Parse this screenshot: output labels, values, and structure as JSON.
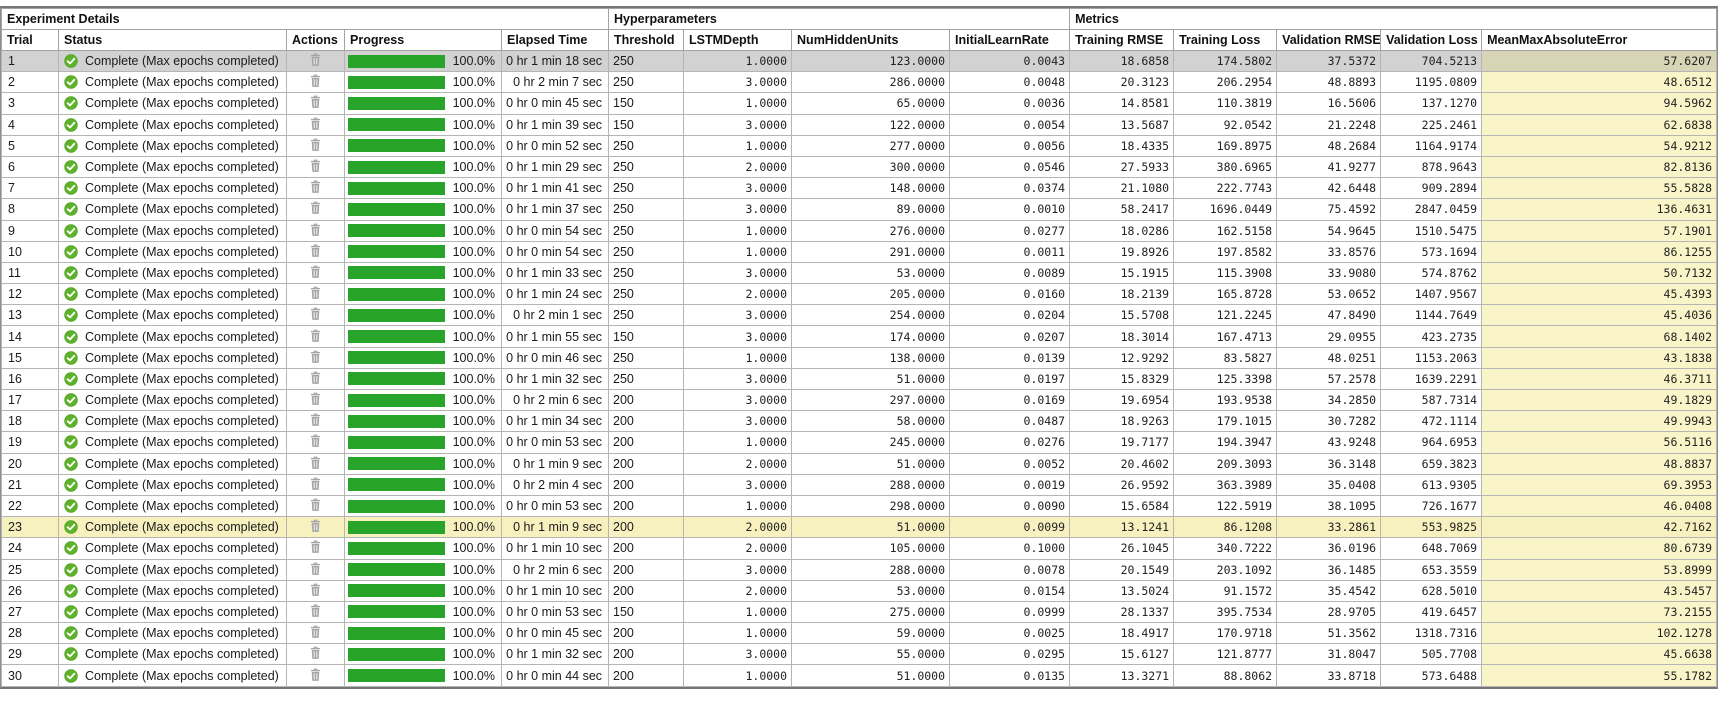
{
  "groups": [
    {
      "label": "Experiment Details"
    },
    {
      "label": "Hyperparameters"
    },
    {
      "label": "Metrics"
    }
  ],
  "columns": [
    "Trial",
    "Status",
    "Actions",
    "Progress",
    "Elapsed Time",
    "Threshold",
    "LSTMDepth",
    "NumHiddenUnits",
    "InitialLearnRate",
    "Training RMSE",
    "Training Loss",
    "Validation RMSE",
    "Validation Loss",
    "MeanMaxAbsoluteError"
  ],
  "status_label": "Complete (Max epochs completed)",
  "status_icon": "check-circle-icon",
  "action_icon": "trash-icon",
  "progress_label": "100.0%",
  "selected_trial": 1,
  "highlighted_trial": 23,
  "colors": {
    "progress_green": "#28a42b",
    "status_check_green": "#5cb229",
    "metric_column_yellow": "#faf5c8",
    "highlight_row_yellow": "#f7f1c0",
    "selected_row_gray": "#d2d2d2",
    "selected_metric_olive": "#d8d4b6"
  },
  "rows": [
    {
      "trial": "1",
      "elapsed": "0 hr 1 min 18 sec",
      "threshold": "250",
      "lstm_depth": "1.0000",
      "num_hidden_units": "123.0000",
      "initial_learn_rate": "0.0043",
      "training_rmse": "18.6858",
      "training_loss": "174.5802",
      "validation_rmse": "37.5372",
      "validation_loss": "704.5213",
      "mean_max_abs_error": "57.6207"
    },
    {
      "trial": "2",
      "elapsed": "0 hr 2 min 7 sec",
      "threshold": "250",
      "lstm_depth": "3.0000",
      "num_hidden_units": "286.0000",
      "initial_learn_rate": "0.0048",
      "training_rmse": "20.3123",
      "training_loss": "206.2954",
      "validation_rmse": "48.8893",
      "validation_loss": "1195.0809",
      "mean_max_abs_error": "48.6512"
    },
    {
      "trial": "3",
      "elapsed": "0 hr 0 min 45 sec",
      "threshold": "150",
      "lstm_depth": "1.0000",
      "num_hidden_units": "65.0000",
      "initial_learn_rate": "0.0036",
      "training_rmse": "14.8581",
      "training_loss": "110.3819",
      "validation_rmse": "16.5606",
      "validation_loss": "137.1270",
      "mean_max_abs_error": "94.5962"
    },
    {
      "trial": "4",
      "elapsed": "0 hr 1 min 39 sec",
      "threshold": "150",
      "lstm_depth": "3.0000",
      "num_hidden_units": "122.0000",
      "initial_learn_rate": "0.0054",
      "training_rmse": "13.5687",
      "training_loss": "92.0542",
      "validation_rmse": "21.2248",
      "validation_loss": "225.2461",
      "mean_max_abs_error": "62.6838"
    },
    {
      "trial": "5",
      "elapsed": "0 hr 0 min 52 sec",
      "threshold": "250",
      "lstm_depth": "1.0000",
      "num_hidden_units": "277.0000",
      "initial_learn_rate": "0.0056",
      "training_rmse": "18.4335",
      "training_loss": "169.8975",
      "validation_rmse": "48.2684",
      "validation_loss": "1164.9174",
      "mean_max_abs_error": "54.9212"
    },
    {
      "trial": "6",
      "elapsed": "0 hr 1 min 29 sec",
      "threshold": "250",
      "lstm_depth": "2.0000",
      "num_hidden_units": "300.0000",
      "initial_learn_rate": "0.0546",
      "training_rmse": "27.5933",
      "training_loss": "380.6965",
      "validation_rmse": "41.9277",
      "validation_loss": "878.9643",
      "mean_max_abs_error": "82.8136"
    },
    {
      "trial": "7",
      "elapsed": "0 hr 1 min 41 sec",
      "threshold": "250",
      "lstm_depth": "3.0000",
      "num_hidden_units": "148.0000",
      "initial_learn_rate": "0.0374",
      "training_rmse": "21.1080",
      "training_loss": "222.7743",
      "validation_rmse": "42.6448",
      "validation_loss": "909.2894",
      "mean_max_abs_error": "55.5828"
    },
    {
      "trial": "8",
      "elapsed": "0 hr 1 min 37 sec",
      "threshold": "250",
      "lstm_depth": "3.0000",
      "num_hidden_units": "89.0000",
      "initial_learn_rate": "0.0010",
      "training_rmse": "58.2417",
      "training_loss": "1696.0449",
      "validation_rmse": "75.4592",
      "validation_loss": "2847.0459",
      "mean_max_abs_error": "136.4631"
    },
    {
      "trial": "9",
      "elapsed": "0 hr 0 min 54 sec",
      "threshold": "250",
      "lstm_depth": "1.0000",
      "num_hidden_units": "276.0000",
      "initial_learn_rate": "0.0277",
      "training_rmse": "18.0286",
      "training_loss": "162.5158",
      "validation_rmse": "54.9645",
      "validation_loss": "1510.5475",
      "mean_max_abs_error": "57.1901"
    },
    {
      "trial": "10",
      "elapsed": "0 hr 0 min 54 sec",
      "threshold": "250",
      "lstm_depth": "1.0000",
      "num_hidden_units": "291.0000",
      "initial_learn_rate": "0.0011",
      "training_rmse": "19.8926",
      "training_loss": "197.8582",
      "validation_rmse": "33.8576",
      "validation_loss": "573.1694",
      "mean_max_abs_error": "86.1255"
    },
    {
      "trial": "11",
      "elapsed": "0 hr 1 min 33 sec",
      "threshold": "250",
      "lstm_depth": "3.0000",
      "num_hidden_units": "53.0000",
      "initial_learn_rate": "0.0089",
      "training_rmse": "15.1915",
      "training_loss": "115.3908",
      "validation_rmse": "33.9080",
      "validation_loss": "574.8762",
      "mean_max_abs_error": "50.7132"
    },
    {
      "trial": "12",
      "elapsed": "0 hr 1 min 24 sec",
      "threshold": "250",
      "lstm_depth": "2.0000",
      "num_hidden_units": "205.0000",
      "initial_learn_rate": "0.0160",
      "training_rmse": "18.2139",
      "training_loss": "165.8728",
      "validation_rmse": "53.0652",
      "validation_loss": "1407.9567",
      "mean_max_abs_error": "45.4393"
    },
    {
      "trial": "13",
      "elapsed": "0 hr 2 min 1 sec",
      "threshold": "250",
      "lstm_depth": "3.0000",
      "num_hidden_units": "254.0000",
      "initial_learn_rate": "0.0204",
      "training_rmse": "15.5708",
      "training_loss": "121.2245",
      "validation_rmse": "47.8490",
      "validation_loss": "1144.7649",
      "mean_max_abs_error": "45.4036"
    },
    {
      "trial": "14",
      "elapsed": "0 hr 1 min 55 sec",
      "threshold": "150",
      "lstm_depth": "3.0000",
      "num_hidden_units": "174.0000",
      "initial_learn_rate": "0.0207",
      "training_rmse": "18.3014",
      "training_loss": "167.4713",
      "validation_rmse": "29.0955",
      "validation_loss": "423.2735",
      "mean_max_abs_error": "68.1402"
    },
    {
      "trial": "15",
      "elapsed": "0 hr 0 min 46 sec",
      "threshold": "250",
      "lstm_depth": "1.0000",
      "num_hidden_units": "138.0000",
      "initial_learn_rate": "0.0139",
      "training_rmse": "12.9292",
      "training_loss": "83.5827",
      "validation_rmse": "48.0251",
      "validation_loss": "1153.2063",
      "mean_max_abs_error": "43.1838"
    },
    {
      "trial": "16",
      "elapsed": "0 hr 1 min 32 sec",
      "threshold": "250",
      "lstm_depth": "3.0000",
      "num_hidden_units": "51.0000",
      "initial_learn_rate": "0.0197",
      "training_rmse": "15.8329",
      "training_loss": "125.3398",
      "validation_rmse": "57.2578",
      "validation_loss": "1639.2291",
      "mean_max_abs_error": "46.3711"
    },
    {
      "trial": "17",
      "elapsed": "0 hr 2 min 6 sec",
      "threshold": "200",
      "lstm_depth": "3.0000",
      "num_hidden_units": "297.0000",
      "initial_learn_rate": "0.0169",
      "training_rmse": "19.6954",
      "training_loss": "193.9538",
      "validation_rmse": "34.2850",
      "validation_loss": "587.7314",
      "mean_max_abs_error": "49.1829"
    },
    {
      "trial": "18",
      "elapsed": "0 hr 1 min 34 sec",
      "threshold": "200",
      "lstm_depth": "3.0000",
      "num_hidden_units": "58.0000",
      "initial_learn_rate": "0.0487",
      "training_rmse": "18.9263",
      "training_loss": "179.1015",
      "validation_rmse": "30.7282",
      "validation_loss": "472.1114",
      "mean_max_abs_error": "49.9943"
    },
    {
      "trial": "19",
      "elapsed": "0 hr 0 min 53 sec",
      "threshold": "200",
      "lstm_depth": "1.0000",
      "num_hidden_units": "245.0000",
      "initial_learn_rate": "0.0276",
      "training_rmse": "19.7177",
      "training_loss": "194.3947",
      "validation_rmse": "43.9248",
      "validation_loss": "964.6953",
      "mean_max_abs_error": "56.5116"
    },
    {
      "trial": "20",
      "elapsed": "0 hr 1 min 9 sec",
      "threshold": "200",
      "lstm_depth": "2.0000",
      "num_hidden_units": "51.0000",
      "initial_learn_rate": "0.0052",
      "training_rmse": "20.4602",
      "training_loss": "209.3093",
      "validation_rmse": "36.3148",
      "validation_loss": "659.3823",
      "mean_max_abs_error": "48.8837"
    },
    {
      "trial": "21",
      "elapsed": "0 hr 2 min 4 sec",
      "threshold": "200",
      "lstm_depth": "3.0000",
      "num_hidden_units": "288.0000",
      "initial_learn_rate": "0.0019",
      "training_rmse": "26.9592",
      "training_loss": "363.3989",
      "validation_rmse": "35.0408",
      "validation_loss": "613.9305",
      "mean_max_abs_error": "69.3953"
    },
    {
      "trial": "22",
      "elapsed": "0 hr 0 min 53 sec",
      "threshold": "200",
      "lstm_depth": "1.0000",
      "num_hidden_units": "298.0000",
      "initial_learn_rate": "0.0090",
      "training_rmse": "15.6584",
      "training_loss": "122.5919",
      "validation_rmse": "38.1095",
      "validation_loss": "726.1677",
      "mean_max_abs_error": "46.0408"
    },
    {
      "trial": "23",
      "elapsed": "0 hr 1 min 9 sec",
      "threshold": "200",
      "lstm_depth": "2.0000",
      "num_hidden_units": "51.0000",
      "initial_learn_rate": "0.0099",
      "training_rmse": "13.1241",
      "training_loss": "86.1208",
      "validation_rmse": "33.2861",
      "validation_loss": "553.9825",
      "mean_max_abs_error": "42.7162"
    },
    {
      "trial": "24",
      "elapsed": "0 hr 1 min 10 sec",
      "threshold": "200",
      "lstm_depth": "2.0000",
      "num_hidden_units": "105.0000",
      "initial_learn_rate": "0.1000",
      "training_rmse": "26.1045",
      "training_loss": "340.7222",
      "validation_rmse": "36.0196",
      "validation_loss": "648.7069",
      "mean_max_abs_error": "80.6739"
    },
    {
      "trial": "25",
      "elapsed": "0 hr 2 min 6 sec",
      "threshold": "200",
      "lstm_depth": "3.0000",
      "num_hidden_units": "288.0000",
      "initial_learn_rate": "0.0078",
      "training_rmse": "20.1549",
      "training_loss": "203.1092",
      "validation_rmse": "36.1485",
      "validation_loss": "653.3559",
      "mean_max_abs_error": "53.8999"
    },
    {
      "trial": "26",
      "elapsed": "0 hr 1 min 10 sec",
      "threshold": "200",
      "lstm_depth": "2.0000",
      "num_hidden_units": "53.0000",
      "initial_learn_rate": "0.0154",
      "training_rmse": "13.5024",
      "training_loss": "91.1572",
      "validation_rmse": "35.4542",
      "validation_loss": "628.5010",
      "mean_max_abs_error": "43.5457"
    },
    {
      "trial": "27",
      "elapsed": "0 hr 0 min 53 sec",
      "threshold": "150",
      "lstm_depth": "1.0000",
      "num_hidden_units": "275.0000",
      "initial_learn_rate": "0.0999",
      "training_rmse": "28.1337",
      "training_loss": "395.7534",
      "validation_rmse": "28.9705",
      "validation_loss": "419.6457",
      "mean_max_abs_error": "73.2155"
    },
    {
      "trial": "28",
      "elapsed": "0 hr 0 min 45 sec",
      "threshold": "200",
      "lstm_depth": "1.0000",
      "num_hidden_units": "59.0000",
      "initial_learn_rate": "0.0025",
      "training_rmse": "18.4917",
      "training_loss": "170.9718",
      "validation_rmse": "51.3562",
      "validation_loss": "1318.7316",
      "mean_max_abs_error": "102.1278"
    },
    {
      "trial": "29",
      "elapsed": "0 hr 1 min 32 sec",
      "threshold": "200",
      "lstm_depth": "3.0000",
      "num_hidden_units": "55.0000",
      "initial_learn_rate": "0.0295",
      "training_rmse": "15.6127",
      "training_loss": "121.8777",
      "validation_rmse": "31.8047",
      "validation_loss": "505.7708",
      "mean_max_abs_error": "45.6638"
    },
    {
      "trial": "30",
      "elapsed": "0 hr 0 min 44 sec",
      "threshold": "200",
      "lstm_depth": "1.0000",
      "num_hidden_units": "51.0000",
      "initial_learn_rate": "0.0135",
      "training_rmse": "13.3271",
      "training_loss": "88.8062",
      "validation_rmse": "33.8718",
      "validation_loss": "573.6488",
      "mean_max_abs_error": "55.1782"
    }
  ]
}
